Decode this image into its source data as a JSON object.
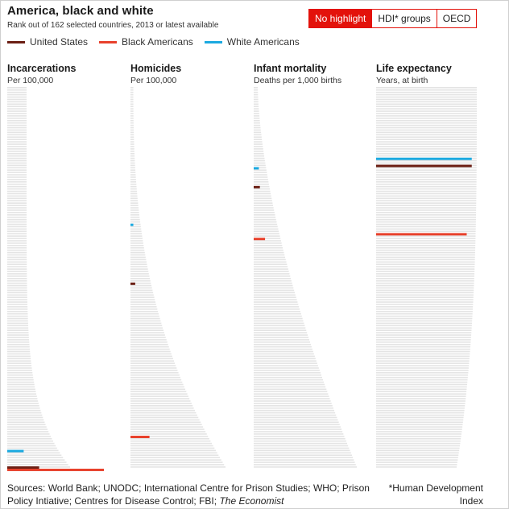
{
  "header": {
    "title": "America, black and white",
    "subtitle": "Rank out of 162 selected countries, 2013 or latest available"
  },
  "toggle": {
    "options": [
      {
        "label": "No highlight",
        "active": true
      },
      {
        "label": "HDI* groups",
        "active": false
      },
      {
        "label": "OECD",
        "active": false
      }
    ]
  },
  "colors": {
    "united_states": "#6b1f14",
    "black_americans": "#e8412c",
    "white_americans": "#1ba9e0",
    "country_bars": "#e4e4e4",
    "accent": "#e3120b"
  },
  "legend": [
    {
      "label": "United States",
      "color": "#6b1f14"
    },
    {
      "label": "Black Americans",
      "color": "#e8412c"
    },
    {
      "label": "White Americans",
      "color": "#1ba9e0"
    }
  ],
  "chart_data": [
    {
      "type": "bar",
      "orientation": "horizontal",
      "title": "Incarcerations",
      "unit": "Per 100,000",
      "total_countries": 162,
      "highlights": [
        {
          "series": "White Americans",
          "rank_from_top": 155,
          "relative_value": 0.17
        },
        {
          "series": "United States",
          "rank_from_top": 162,
          "relative_value": 0.33
        },
        {
          "series": "Black Americans",
          "rank_from_top": 163,
          "relative_value": 1.0
        }
      ]
    },
    {
      "type": "bar",
      "orientation": "horizontal",
      "title": "Homicides",
      "unit": "Per 100,000",
      "total_countries": 162,
      "highlights": [
        {
          "series": "White Americans",
          "rank_from_top": 59,
          "relative_value": 0.03
        },
        {
          "series": "United States",
          "rank_from_top": 84,
          "relative_value": 0.05
        },
        {
          "series": "Black Americans",
          "rank_from_top": 149,
          "relative_value": 0.2
        }
      ]
    },
    {
      "type": "bar",
      "orientation": "horizontal",
      "title": "Infant mortality",
      "unit": "Deaths per 1,000 births",
      "total_countries": 162,
      "highlights": [
        {
          "series": "White Americans",
          "rank_from_top": 35,
          "relative_value": 0.05
        },
        {
          "series": "United States",
          "rank_from_top": 43,
          "relative_value": 0.06
        },
        {
          "series": "Black Americans",
          "rank_from_top": 65,
          "relative_value": 0.11
        }
      ]
    },
    {
      "type": "bar",
      "orientation": "horizontal",
      "title": "Life expectancy",
      "unit": "Years, at birth",
      "total_countries": 162,
      "highlights": [
        {
          "series": "White Americans",
          "rank_from_top": 31,
          "relative_value": 0.95
        },
        {
          "series": "United States",
          "rank_from_top": 34,
          "relative_value": 0.95
        },
        {
          "series": "Black Americans",
          "rank_from_top": 63,
          "relative_value": 0.9
        }
      ]
    }
  ],
  "footer": {
    "sources_prefix": "Sources: World Bank; UNODC; International Centre for Prison Studies; WHO; Prison Policy Intiative; Centres for Disease Control; FBI; ",
    "sources_italic": "The Economist",
    "footnote": "*Human Development Index"
  }
}
